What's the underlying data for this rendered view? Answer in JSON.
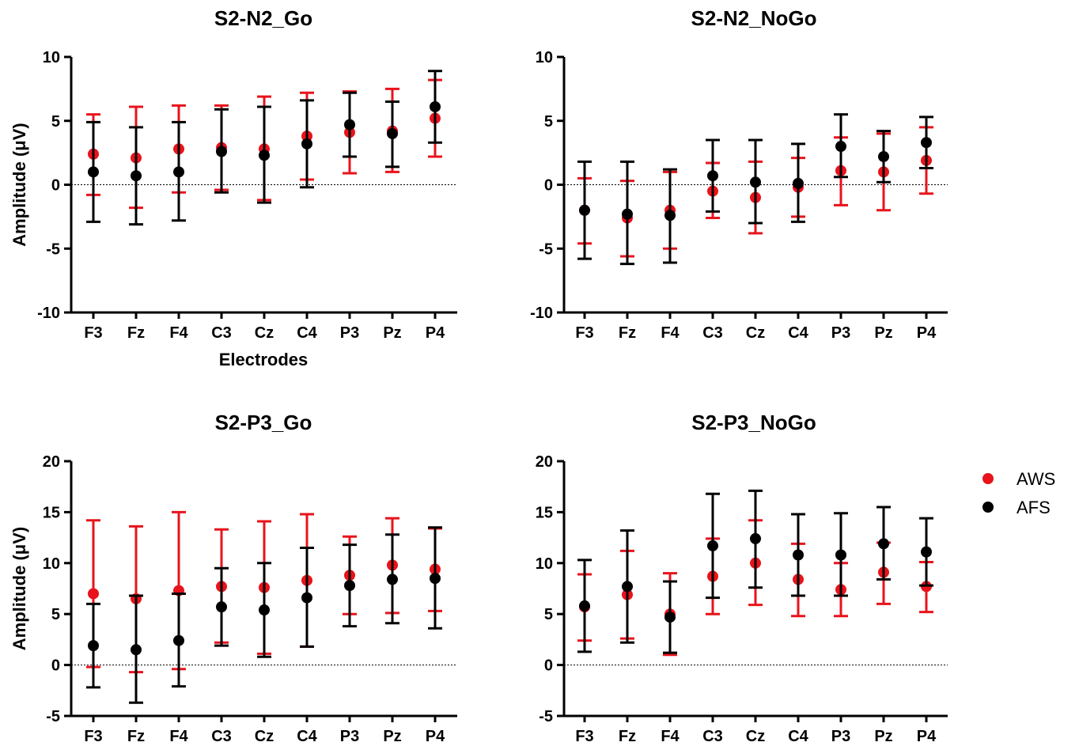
{
  "legend": [
    {
      "name": "AWS",
      "color": "#e8131b"
    },
    {
      "name": "AFS",
      "color": "#000000"
    }
  ],
  "chart_data": [
    {
      "type": "scatter",
      "title": "S2-N2_Go",
      "xlabel": "Electrodes",
      "ylabel": "Amplitude (μV)",
      "ylim": [
        -10,
        10
      ],
      "yticks": [
        -10,
        -5,
        0,
        5,
        10
      ],
      "categories": [
        "F3",
        "Fz",
        "F4",
        "C3",
        "Cz",
        "C4",
        "P3",
        "Pz",
        "P4"
      ],
      "reference_line": 0,
      "series": [
        {
          "name": "AWS",
          "color": "#e8131b",
          "values": [
            2.4,
            2.1,
            2.8,
            2.9,
            2.8,
            3.8,
            4.1,
            4.2,
            5.2
          ],
          "lower": [
            -0.8,
            -1.8,
            -0.6,
            -0.4,
            -1.2,
            0.4,
            0.9,
            1.0,
            2.2
          ],
          "upper": [
            5.5,
            6.1,
            6.2,
            6.2,
            6.9,
            7.2,
            7.3,
            7.5,
            8.2
          ]
        },
        {
          "name": "AFS",
          "color": "#000000",
          "values": [
            1.0,
            0.7,
            1.0,
            2.6,
            2.3,
            3.2,
            4.7,
            4.0,
            6.1
          ],
          "lower": [
            -2.9,
            -3.1,
            -2.8,
            -0.6,
            -1.4,
            -0.2,
            2.2,
            1.4,
            3.3
          ],
          "upper": [
            4.9,
            4.5,
            4.9,
            5.9,
            6.1,
            6.6,
            7.2,
            6.5,
            8.9
          ]
        }
      ]
    },
    {
      "type": "scatter",
      "title": "S2-N2_NoGo",
      "xlabel": "",
      "ylabel": "",
      "ylim": [
        -10,
        10
      ],
      "yticks": [
        -10,
        -5,
        0,
        5,
        10
      ],
      "categories": [
        "F3",
        "Fz",
        "F4",
        "C3",
        "Cz",
        "C4",
        "P3",
        "Pz",
        "P4"
      ],
      "reference_line": 0,
      "series": [
        {
          "name": "AWS",
          "color": "#e8131b",
          "values": [
            -2.0,
            -2.6,
            -2.0,
            -0.5,
            -1.0,
            -0.2,
            1.1,
            1.0,
            1.9
          ],
          "lower": [
            -4.6,
            -5.6,
            -5.0,
            -2.6,
            -3.8,
            -2.5,
            -1.6,
            -2.0,
            -0.7
          ],
          "upper": [
            0.5,
            0.3,
            1.0,
            1.7,
            1.8,
            2.1,
            3.7,
            4.0,
            4.5
          ]
        },
        {
          "name": "AFS",
          "color": "#000000",
          "values": [
            -2.0,
            -2.3,
            -2.4,
            0.7,
            0.2,
            0.1,
            3.0,
            2.2,
            3.3
          ],
          "lower": [
            -5.8,
            -6.2,
            -6.1,
            -2.1,
            -3.0,
            -2.9,
            0.6,
            0.2,
            1.3
          ],
          "upper": [
            1.8,
            1.8,
            1.2,
            3.5,
            3.5,
            3.2,
            5.5,
            4.2,
            5.3
          ]
        }
      ]
    },
    {
      "type": "scatter",
      "title": "S2-P3_Go",
      "xlabel": "",
      "ylabel": "Amplitude (μV)",
      "ylim": [
        -5,
        20
      ],
      "yticks": [
        -5,
        0,
        5,
        10,
        15,
        20
      ],
      "categories": [
        "F3",
        "Fz",
        "F4",
        "C3",
        "Cz",
        "C4",
        "P3",
        "Pz",
        "P4"
      ],
      "reference_line": 0,
      "series": [
        {
          "name": "AWS",
          "color": "#e8131b",
          "values": [
            7.0,
            6.5,
            7.3,
            7.7,
            7.6,
            8.3,
            8.8,
            9.8,
            9.4
          ],
          "lower": [
            -0.2,
            -0.7,
            -0.4,
            2.2,
            1.1,
            1.8,
            5.0,
            5.1,
            5.3
          ],
          "upper": [
            14.2,
            13.6,
            15.0,
            13.3,
            14.1,
            14.8,
            12.6,
            14.4,
            13.4
          ]
        },
        {
          "name": "AFS",
          "color": "#000000",
          "values": [
            1.9,
            1.5,
            2.4,
            5.7,
            5.4,
            6.6,
            7.8,
            8.4,
            8.5
          ],
          "lower": [
            -2.2,
            -3.7,
            -2.1,
            1.9,
            0.8,
            1.8,
            3.8,
            4.1,
            3.6
          ],
          "upper": [
            6.0,
            6.8,
            7.0,
            9.5,
            10.0,
            11.5,
            11.8,
            12.8,
            13.5
          ]
        }
      ]
    },
    {
      "type": "scatter",
      "title": "S2-P3_NoGo",
      "xlabel": "",
      "ylabel": "",
      "ylim": [
        -5,
        20
      ],
      "yticks": [
        -5,
        0,
        5,
        10,
        15,
        20
      ],
      "categories": [
        "F3",
        "Fz",
        "F4",
        "C3",
        "Cz",
        "C4",
        "P3",
        "Pz",
        "P4"
      ],
      "reference_line": 0,
      "series": [
        {
          "name": "AWS",
          "color": "#e8131b",
          "values": [
            5.7,
            6.9,
            5.0,
            8.7,
            10.0,
            8.4,
            7.4,
            9.1,
            7.7
          ],
          "lower": [
            2.4,
            2.6,
            1.0,
            5.0,
            5.9,
            4.8,
            4.8,
            6.0,
            5.2
          ],
          "upper": [
            8.9,
            11.2,
            9.0,
            12.4,
            14.2,
            11.9,
            10.0,
            12.0,
            10.1
          ]
        },
        {
          "name": "AFS",
          "color": "#000000",
          "values": [
            5.8,
            7.7,
            4.7,
            11.7,
            12.4,
            10.8,
            10.8,
            11.9,
            11.1
          ],
          "lower": [
            1.3,
            2.2,
            1.2,
            6.6,
            7.6,
            6.8,
            6.8,
            8.4,
            7.8
          ],
          "upper": [
            10.3,
            13.2,
            8.2,
            16.8,
            17.1,
            14.8,
            14.9,
            15.5,
            14.4
          ]
        }
      ]
    }
  ]
}
